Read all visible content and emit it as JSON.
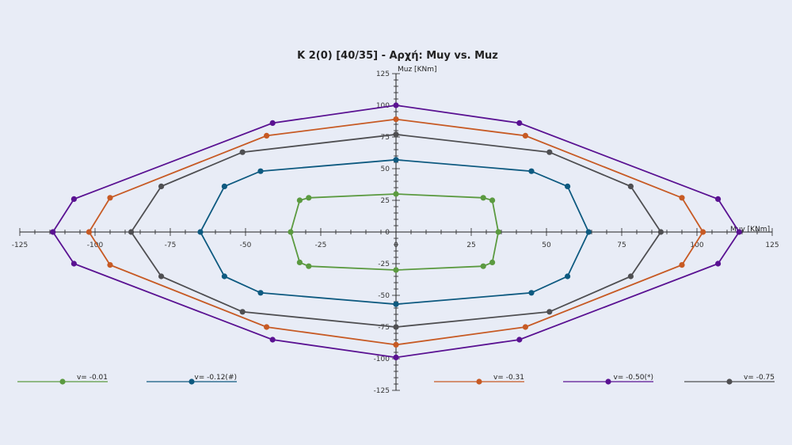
{
  "chart_data": {
    "type": "line",
    "title": "K 2(0) [40/35] - Αρχή: Muy vs. Muz",
    "xlabel": "Muy [KNm]",
    "ylabel": "Muz [KNm]",
    "xlim": [
      -125,
      125
    ],
    "ylim": [
      -125,
      125
    ],
    "x_ticks": [
      -125,
      -100,
      -75,
      -50,
      -25,
      0,
      25,
      50,
      75,
      100,
      125
    ],
    "y_ticks": [
      -125,
      -100,
      -75,
      -50,
      -25,
      0,
      25,
      50,
      75,
      100,
      125
    ],
    "grid": false,
    "legend_position": "bottom",
    "series": [
      {
        "name": "v= -0.01",
        "color": "#5b9a40",
        "points": [
          [
            0,
            30
          ],
          [
            29,
            27
          ],
          [
            32,
            25
          ],
          [
            34,
            0
          ],
          [
            32,
            -24
          ],
          [
            29,
            -27
          ],
          [
            0,
            -30
          ],
          [
            -29,
            -27
          ],
          [
            -32,
            -24
          ],
          [
            -35,
            0
          ],
          [
            -32,
            25
          ],
          [
            -29,
            27
          ],
          [
            0,
            30
          ]
        ]
      },
      {
        "name": "v= -0.12(#)",
        "color": "#0e5a80",
        "points": [
          [
            0,
            57
          ],
          [
            45,
            48
          ],
          [
            57,
            36
          ],
          [
            64,
            0
          ],
          [
            57,
            -35
          ],
          [
            45,
            -48
          ],
          [
            0,
            -57
          ],
          [
            -45,
            -48
          ],
          [
            -57,
            -35
          ],
          [
            -65,
            0
          ],
          [
            -57,
            36
          ],
          [
            -45,
            48
          ],
          [
            0,
            57
          ]
        ]
      },
      {
        "name": "v= -0.31",
        "color": "#c75a24",
        "points": [
          [
            0,
            89
          ],
          [
            43,
            76
          ],
          [
            95,
            27
          ],
          [
            102,
            0
          ],
          [
            95,
            -26
          ],
          [
            43,
            -75
          ],
          [
            0,
            -89
          ],
          [
            -43,
            -75
          ],
          [
            -95,
            -26
          ],
          [
            -102,
            0
          ],
          [
            -95,
            27
          ],
          [
            -43,
            76
          ],
          [
            0,
            89
          ]
        ]
      },
      {
        "name": "v= -0.50(*)",
        "color": "#5a1292",
        "points": [
          [
            0,
            100
          ],
          [
            41,
            86
          ],
          [
            107,
            26
          ],
          [
            114,
            0
          ],
          [
            107,
            -25
          ],
          [
            41,
            -85
          ],
          [
            0,
            -99
          ],
          [
            -41,
            -85
          ],
          [
            -107,
            -25
          ],
          [
            -114,
            0
          ],
          [
            -107,
            26
          ],
          [
            -41,
            86
          ],
          [
            0,
            100
          ]
        ]
      },
      {
        "name": "v= -0.75",
        "color": "#4f4f52",
        "points": [
          [
            0,
            77
          ],
          [
            51,
            63
          ],
          [
            78,
            36
          ],
          [
            88,
            0
          ],
          [
            78,
            -35
          ],
          [
            51,
            -63
          ],
          [
            0,
            -75
          ],
          [
            -51,
            -63
          ],
          [
            -78,
            -35
          ],
          [
            -88,
            0
          ],
          [
            -78,
            36
          ],
          [
            -51,
            63
          ],
          [
            0,
            77
          ]
        ]
      }
    ]
  }
}
